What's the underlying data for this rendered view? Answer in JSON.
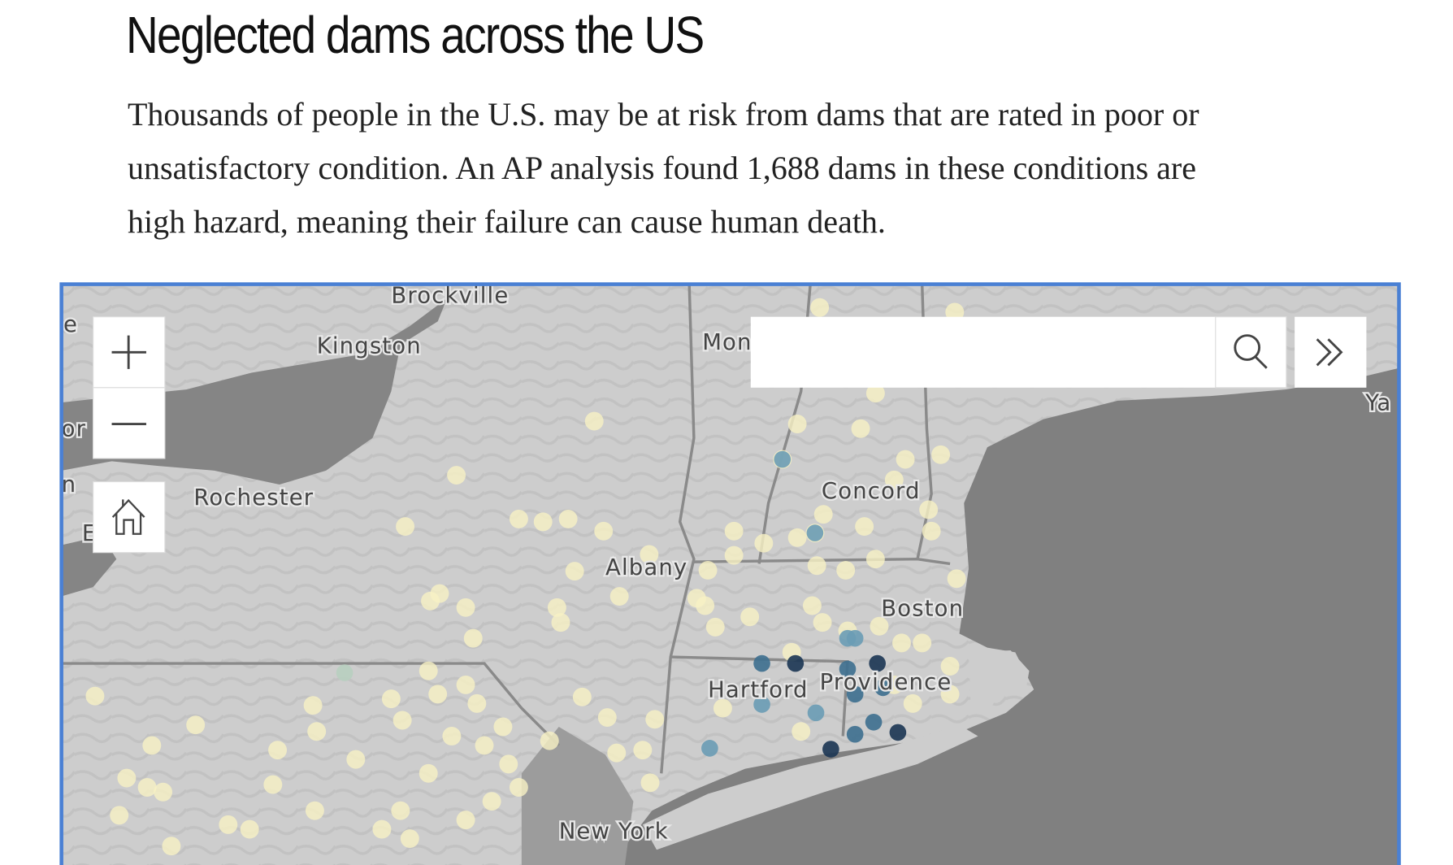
{
  "header": {
    "title": "Neglected dams across the US",
    "description_lines": [
      "Thousands of people in the U.S. may be at risk from dams that are rated in poor or",
      "unsatisfactory condition. An AP analysis found 1,688 dams in these conditions are",
      "high hazard, meaning their failure can cause human death."
    ]
  },
  "map": {
    "labels": [
      "Brockville",
      "Kingston",
      "Mon",
      "Ya",
      "e",
      "or",
      "n",
      "E",
      "Rochester",
      "Albany",
      "Concord",
      "Boston",
      "Hartford",
      "Providence",
      "New York"
    ]
  }
}
